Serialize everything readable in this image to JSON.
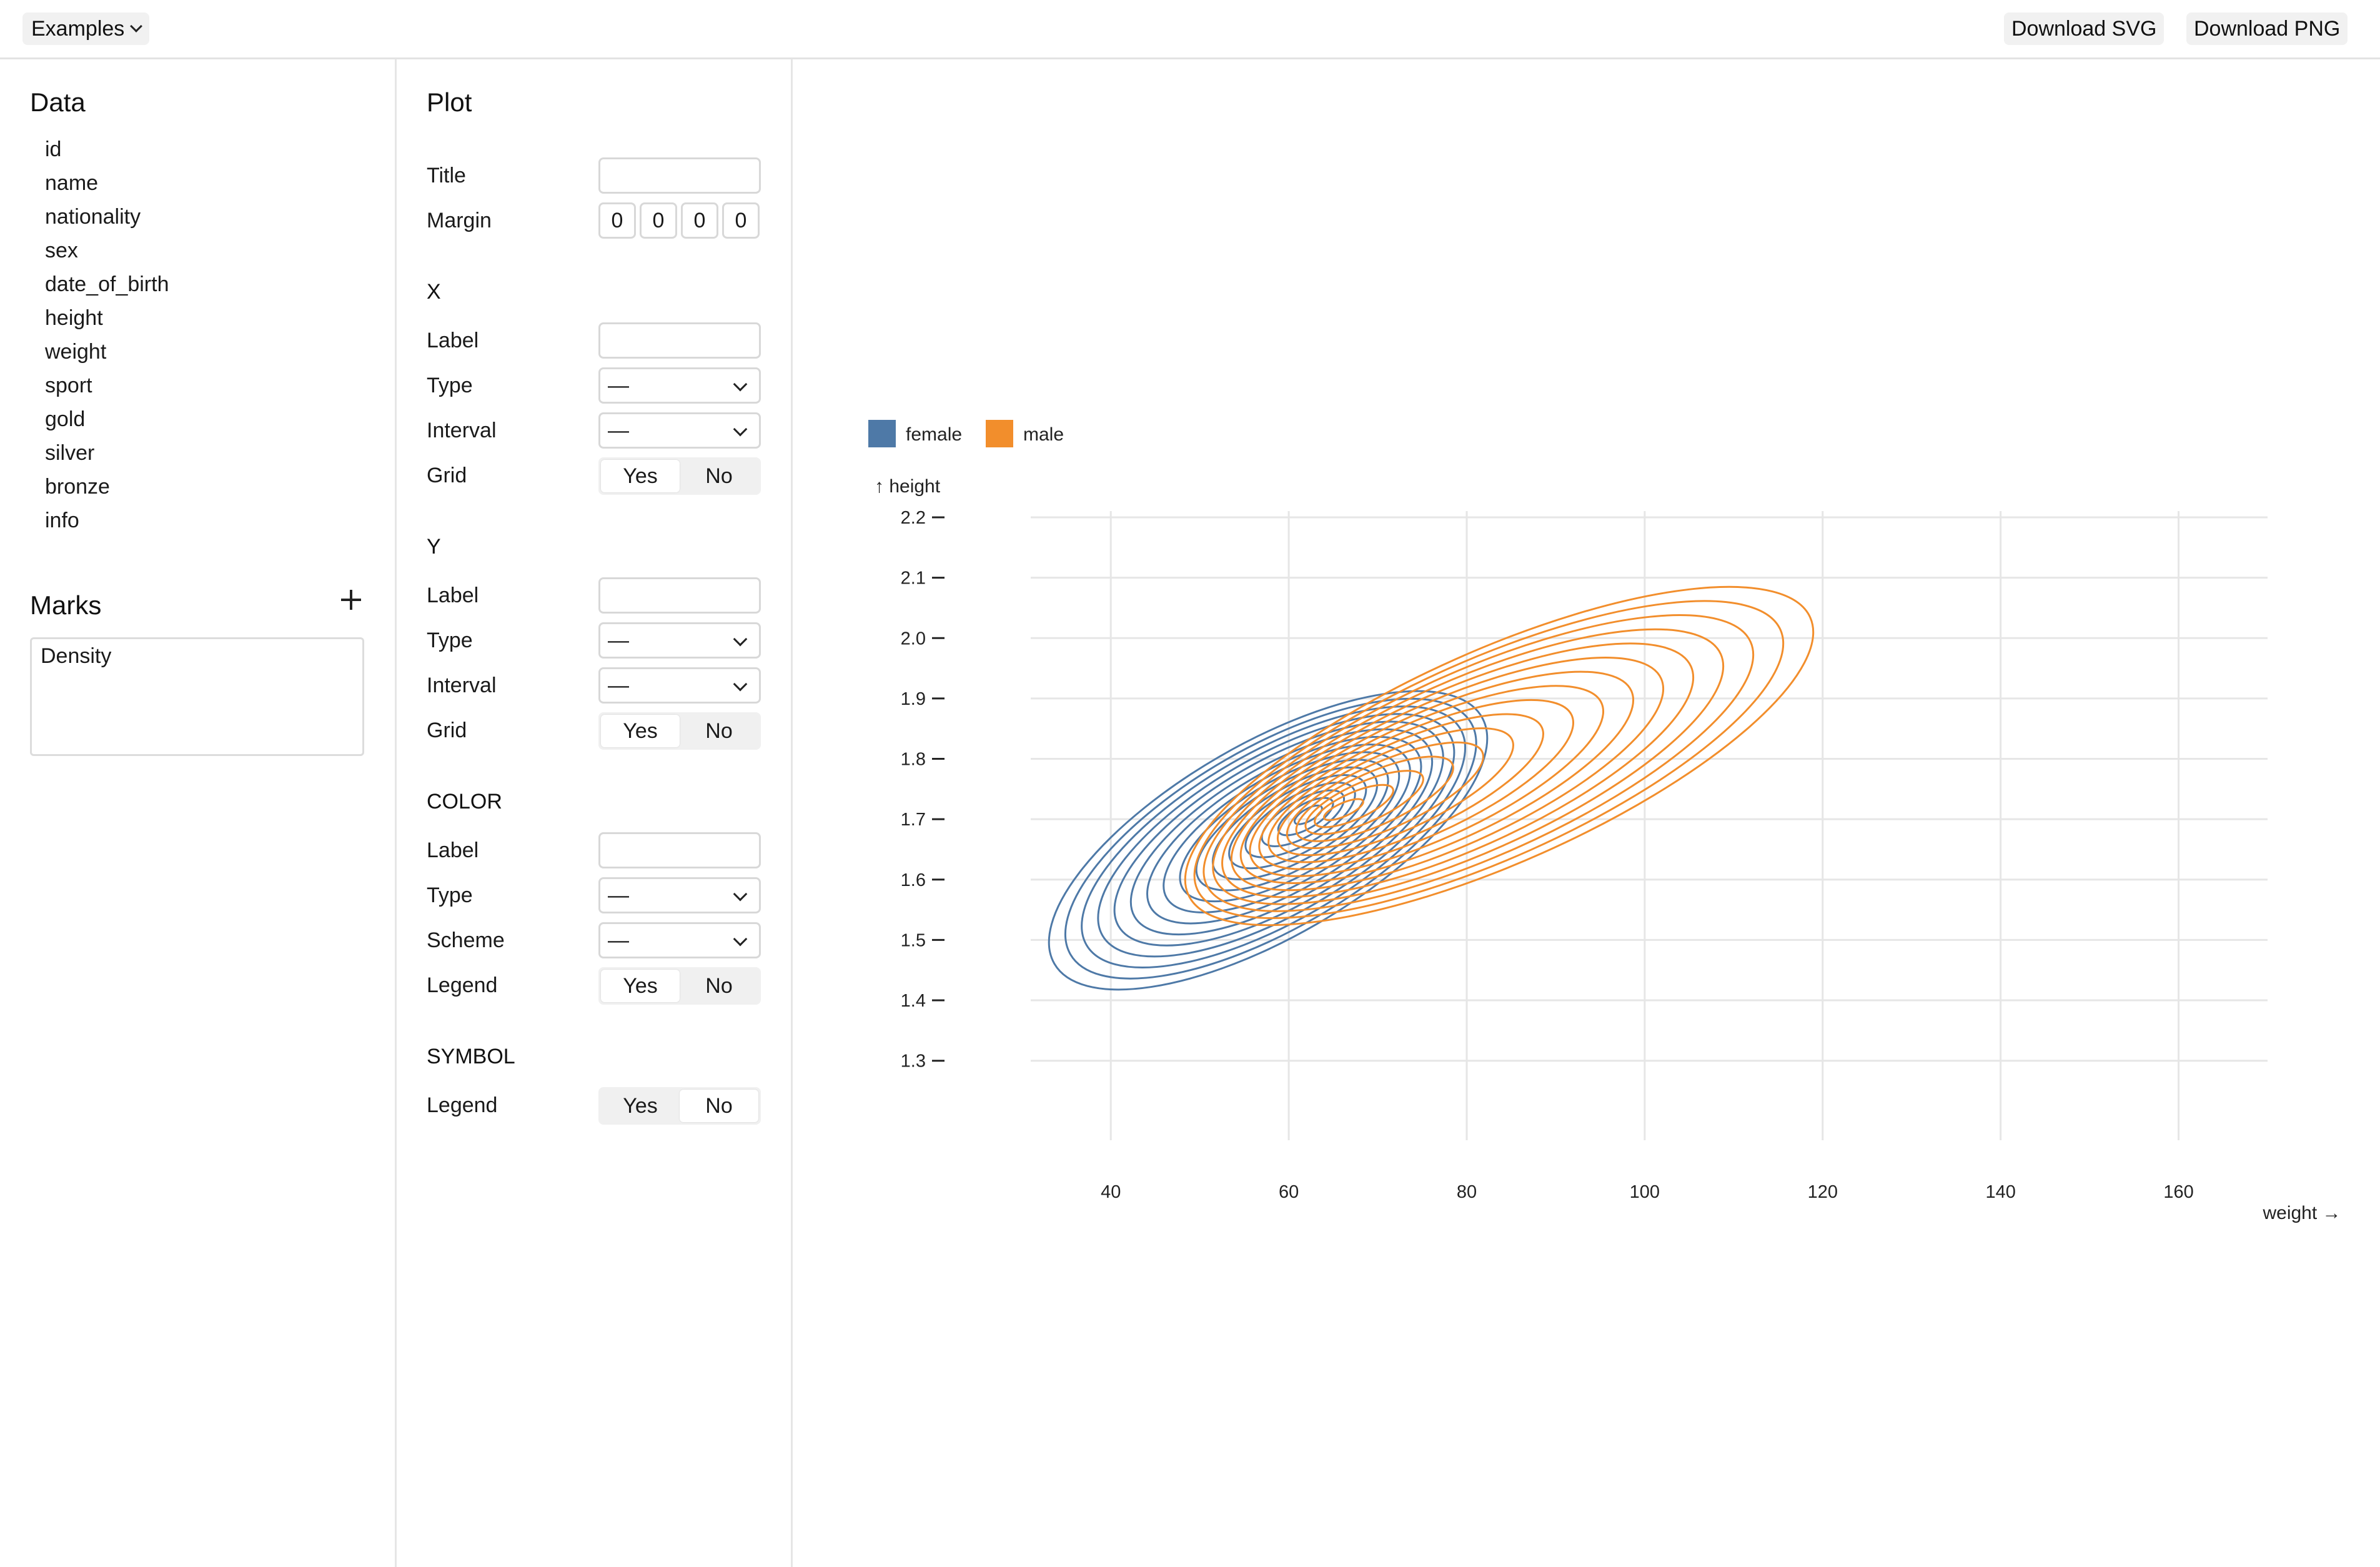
{
  "topbar": {
    "examples_label": "Examples",
    "download_svg_label": "Download SVG",
    "download_png_label": "Download PNG"
  },
  "data_panel": {
    "title": "Data",
    "fields": [
      "id",
      "name",
      "nationality",
      "sex",
      "date_of_birth",
      "height",
      "weight",
      "sport",
      "gold",
      "silver",
      "bronze",
      "info"
    ],
    "marks_title": "Marks",
    "marks": [
      "Density"
    ]
  },
  "plot_panel": {
    "title": "Plot",
    "title_label": "Title",
    "title_value": "",
    "margin_label": "Margin",
    "margin_values": [
      "0",
      "0",
      "0",
      "0"
    ],
    "x": {
      "heading": "X",
      "label_label": "Label",
      "label_value": "",
      "type_label": "Type",
      "type_value": "—",
      "interval_label": "Interval",
      "interval_value": "—",
      "grid_label": "Grid",
      "grid_yes": "Yes",
      "grid_no": "No",
      "grid_selected": "Yes"
    },
    "y": {
      "heading": "Y",
      "label_label": "Label",
      "label_value": "",
      "type_label": "Type",
      "type_value": "—",
      "interval_label": "Interval",
      "interval_value": "—",
      "grid_label": "Grid",
      "grid_yes": "Yes",
      "grid_no": "No",
      "grid_selected": "Yes"
    },
    "color": {
      "heading": "COLOR",
      "label_label": "Label",
      "label_value": "",
      "type_label": "Type",
      "type_value": "—",
      "scheme_label": "Scheme",
      "scheme_value": "—",
      "legend_label": "Legend",
      "legend_yes": "Yes",
      "legend_no": "No",
      "legend_selected": "Yes"
    },
    "symbol": {
      "heading": "SYMBOL",
      "legend_label": "Legend",
      "legend_yes": "Yes",
      "legend_no": "No",
      "legend_selected": "No"
    }
  },
  "chart_data": {
    "type": "density-contour",
    "xlabel": "weight →",
    "ylabel": "↑ height",
    "xlim": [
      31,
      170
    ],
    "ylim": [
      1.22,
      2.2
    ],
    "x_ticks": [
      40,
      60,
      80,
      100,
      120,
      140,
      160
    ],
    "y_ticks": [
      1.3,
      1.4,
      1.5,
      1.6,
      1.7,
      1.8,
      1.9,
      2.0,
      2.1,
      2.2
    ],
    "x_tick_labels": [
      "40",
      "60",
      "80",
      "100",
      "120",
      "140",
      "160"
    ],
    "y_tick_labels": [
      "1.3",
      "1.4",
      "1.5",
      "1.6",
      "1.7",
      "1.8",
      "1.9",
      "2.0",
      "2.1",
      "2.2"
    ],
    "grid": true,
    "legend_position": "top-left",
    "legend": [
      {
        "name": "female",
        "color": "#4e79a7"
      },
      {
        "name": "male",
        "color": "#f28e2c"
      }
    ],
    "series": [
      {
        "name": "female",
        "color": "#4e79a7",
        "center": [
          62.5,
          1.71
        ],
        "outer_extent_x": [
          40,
          87
        ],
        "outer_extent_y": [
          1.44,
          1.97
        ],
        "levels": 16
      },
      {
        "name": "male",
        "color": "#f28e2c",
        "center": [
          65,
          1.71
        ],
        "outer_extent_x": [
          62,
          112
        ],
        "outer_extent_y": [
          1.52,
          2.1
        ],
        "levels": 16
      }
    ]
  }
}
